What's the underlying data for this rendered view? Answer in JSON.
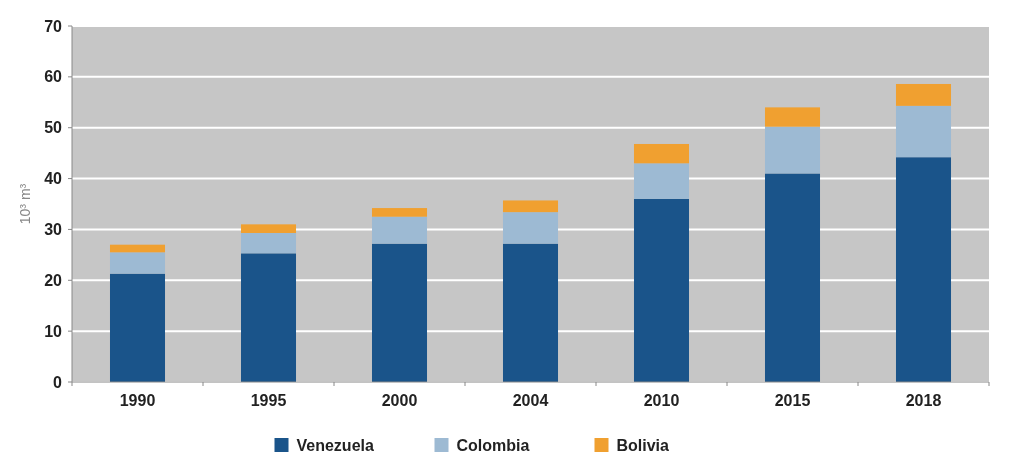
{
  "chart_data": {
    "type": "bar",
    "stacked": true,
    "ylabel": "10³ m³",
    "categories": [
      "1990",
      "1995",
      "2000",
      "2004",
      "2010",
      "2015",
      "2018"
    ],
    "series": [
      {
        "name": "Venezuela",
        "color": "#1a548a",
        "values": [
          21.3,
          25.3,
          27.2,
          27.2,
          36,
          41,
          44.2
        ]
      },
      {
        "name": "Colombia",
        "color": "#9dbad3",
        "values": [
          4.2,
          4,
          5.3,
          6.2,
          7,
          9.2,
          10.1
        ]
      },
      {
        "name": "Bolivia",
        "color": "#f0a030",
        "values": [
          1.5,
          1.7,
          1.7,
          2.3,
          3.8,
          3.8,
          4.3
        ]
      }
    ],
    "ylim": [
      0,
      70
    ],
    "yticks": [
      0,
      10,
      20,
      30,
      40,
      50,
      60,
      70
    ],
    "grid": "y",
    "legend": "bottom"
  }
}
